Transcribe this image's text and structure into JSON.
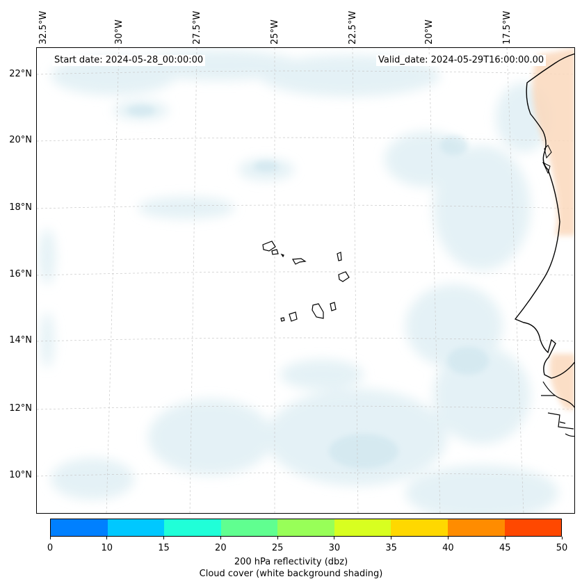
{
  "map": {
    "start_label": "Start date: 2024-05-28_00:00:00",
    "valid_label": "Valid_date: 2024-05-29T16:00:00.00",
    "longitude_labels": [
      "32.5°W",
      "30°W",
      "27.5°W",
      "25°W",
      "22.5°W",
      "20°W",
      "17.5°W"
    ],
    "latitude_labels": [
      "22°N",
      "20°N",
      "18°N",
      "16°N",
      "14°N",
      "12°N",
      "10°N"
    ],
    "islands": [
      "Santo Antão",
      "São Vicente",
      "Santa Luzia",
      "São Nicolau",
      "Sal",
      "Boa Vista",
      "Maio",
      "Santiago",
      "Fogo",
      "Brava"
    ]
  },
  "colorbar": {
    "title": "200 hPa reflectivity (dbz)",
    "subtitle": "Cloud cover (white background shading)",
    "ticks": [
      "0",
      "10",
      "15",
      "20",
      "25",
      "30",
      "35",
      "40",
      "45",
      "50"
    ],
    "colors": [
      "#0080ff",
      "#00c8ff",
      "#20ffd8",
      "#60ff90",
      "#98ff58",
      "#d8ff20",
      "#ffd800",
      "#ff8c00",
      "#ff4800"
    ]
  },
  "colors": {
    "cloud": "#dcedf3",
    "land_warm": "#fbd9bd",
    "coast": "#000000",
    "grid": "#c8c8c8"
  }
}
